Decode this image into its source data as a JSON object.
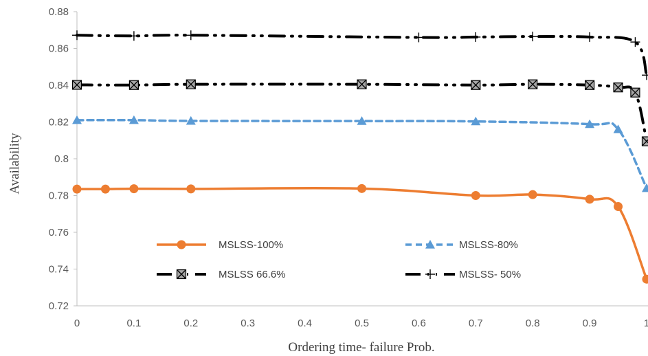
{
  "chart_data": {
    "type": "line",
    "title": "",
    "xlabel": "Ordering time- failure Prob.",
    "ylabel": "Availability",
    "xlim": [
      0,
      1
    ],
    "ylim": [
      0.72,
      0.88
    ],
    "x_ticks": [
      "0",
      "0.1",
      "0.2",
      "0.3",
      "0.4",
      "0.5",
      "0.6",
      "0.7",
      "0.8",
      "0.9",
      "1"
    ],
    "y_ticks": [
      "0.72",
      "0.74",
      "0.76",
      "0.78",
      "0.8",
      "0.82",
      "0.84",
      "0.86",
      "0.88"
    ],
    "grid": false,
    "legend_position": "bottom-center, inside plot area, 2 columns",
    "series": [
      {
        "name": "MSLSS-100%",
        "color": "#ED7D31",
        "line_style": "solid",
        "marker": "circle",
        "x": [
          0,
          0.05,
          0.1,
          0.2,
          0.5,
          0.7,
          0.8,
          0.9,
          0.95,
          1
        ],
        "y": [
          0.7835,
          0.7835,
          0.7837,
          0.7836,
          0.7838,
          0.78,
          0.7805,
          0.778,
          0.774,
          0.7345
        ]
      },
      {
        "name": "MSLSS-80%",
        "color": "#5B9BD5",
        "line_style": "dashed",
        "marker": "triangle",
        "x": [
          0,
          0.1,
          0.2,
          0.5,
          0.7,
          0.9,
          0.95,
          1
        ],
        "y": [
          0.821,
          0.821,
          0.8206,
          0.8205,
          0.8203,
          0.8188,
          0.816,
          0.784
        ]
      },
      {
        "name": "MSLSS 66.6%",
        "color": "#000000",
        "line_style": "dash-dot-dot",
        "marker": "x-square",
        "x": [
          0,
          0.1,
          0.2,
          0.5,
          0.7,
          0.8,
          0.9,
          0.95,
          0.98,
          1
        ],
        "y": [
          0.8402,
          0.8401,
          0.8405,
          0.8405,
          0.8401,
          0.8405,
          0.8401,
          0.8388,
          0.836,
          0.8095
        ]
      },
      {
        "name": "MSLSS- 50%",
        "color": "#000000",
        "line_style": "dash-dot-dot",
        "marker": "plus",
        "x": [
          0,
          0.1,
          0.2,
          0.6,
          0.7,
          0.8,
          0.9,
          0.98,
          1
        ],
        "y": [
          0.8672,
          0.8668,
          0.8672,
          0.866,
          0.8662,
          0.8665,
          0.8662,
          0.8635,
          0.8455
        ]
      }
    ]
  }
}
